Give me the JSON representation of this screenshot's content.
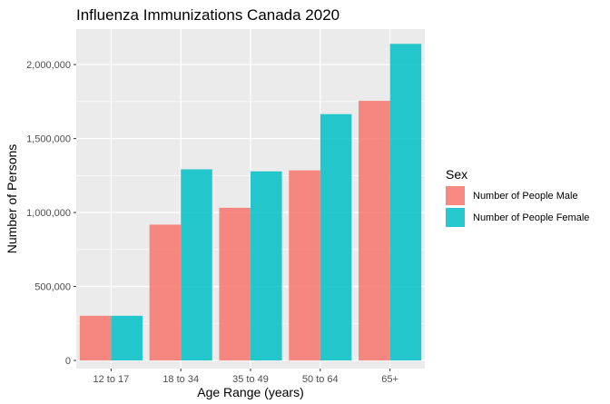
{
  "chart_data": {
    "type": "bar",
    "title": "Influenza Immunizations Canada 2020",
    "xlabel": "Age Range (years)",
    "ylabel": "Number of Persons",
    "categories": [
      "12 to 17",
      "18 to 34",
      "35 to 49",
      "50 to 64",
      "65+"
    ],
    "series": [
      {
        "name": "Number of People Male",
        "color": "#F8766D",
        "values": [
          302000,
          918000,
          1032000,
          1285000,
          1755000
        ]
      },
      {
        "name": "Number of People Female",
        "color": "#00BFC4",
        "values": [
          302000,
          1292000,
          1278000,
          1665000,
          2140000
        ]
      }
    ],
    "ylim": [
      -55000,
      2240000
    ],
    "yticks": [
      0,
      500000,
      1000000,
      1500000,
      2000000
    ],
    "ytick_labels": [
      "0",
      "500,000",
      "1,000,000",
      "1,500,000",
      "2,000,000"
    ],
    "legend": {
      "title": "Sex",
      "position": "right"
    },
    "grid": true,
    "panel_background": "#EBEBEB",
    "grid_color": "#FFFFFF"
  }
}
